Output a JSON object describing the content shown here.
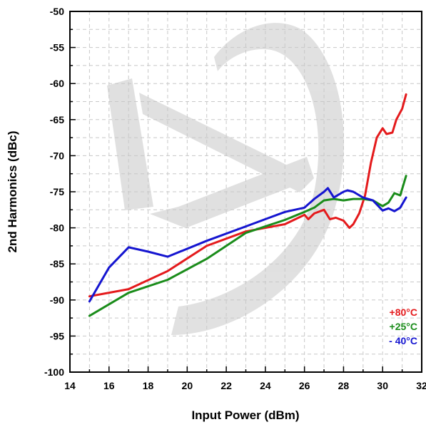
{
  "chart_data": {
    "type": "line",
    "xlabel": "Input Power (dBm)",
    "ylabel": "2nd Harmonics (dBc)",
    "xlim": [
      14,
      32
    ],
    "ylim": [
      -100,
      -50
    ],
    "xticks": [
      "14",
      "16",
      "18",
      "20",
      "22",
      "24",
      "26",
      "28",
      "30",
      "32"
    ],
    "yticks": [
      "-50",
      "-55",
      "-60",
      "-65",
      "-70",
      "-75",
      "-80",
      "-85",
      "-90",
      "-95",
      "-100"
    ],
    "grid": true,
    "legend_position": "bottom-right",
    "series": [
      {
        "name": "+80°C",
        "color": "#e41a1c",
        "x": [
          15,
          17,
          19,
          21,
          23,
          25,
          26,
          26.2,
          26.5,
          27,
          27.3,
          27.6,
          28,
          28.3,
          28.5,
          28.8,
          29.1,
          29.4,
          29.7,
          30,
          30.2,
          30.5,
          30.7,
          31,
          31.2
        ],
        "y": [
          -89.5,
          -88.5,
          -86,
          -82.5,
          -80.5,
          -79.5,
          -78.2,
          -78.8,
          -78,
          -77.5,
          -78.8,
          -78.6,
          -79,
          -80,
          -79.5,
          -78,
          -75.5,
          -71,
          -67.5,
          -66.2,
          -67,
          -66.8,
          -65,
          -63.5,
          -61.5
        ]
      },
      {
        "name": "+25°C",
        "color": "#1a8c1a",
        "x": [
          15,
          17,
          19,
          21,
          23,
          25,
          26,
          26.5,
          27,
          27.5,
          28,
          28.5,
          29,
          29.5,
          30,
          30.3,
          30.6,
          30.9,
          31.2
        ],
        "y": [
          -92.2,
          -89,
          -87.2,
          -84.3,
          -80.7,
          -78.9,
          -77.8,
          -77.2,
          -76.2,
          -76,
          -76.2,
          -76,
          -76,
          -76.2,
          -77,
          -76.5,
          -75.2,
          -75.5,
          -72.8
        ]
      },
      {
        "name": "- 40°C",
        "color": "#1515d0",
        "x": [
          15,
          16,
          17,
          18,
          19,
          21,
          23,
          25,
          26,
          26.5,
          27,
          27.2,
          27.5,
          28,
          28.2,
          28.5,
          29,
          29.5,
          30,
          30.3,
          30.6,
          30.9,
          31.2
        ],
        "y": [
          -90.2,
          -85.5,
          -82.7,
          -83.3,
          -84,
          -81.8,
          -79.8,
          -77.8,
          -77.2,
          -76,
          -75,
          -74.5,
          -75.8,
          -75,
          -74.8,
          -75,
          -75.8,
          -76.2,
          -77.6,
          -77.3,
          -77.7,
          -77.2,
          -75.8
        ]
      }
    ]
  }
}
